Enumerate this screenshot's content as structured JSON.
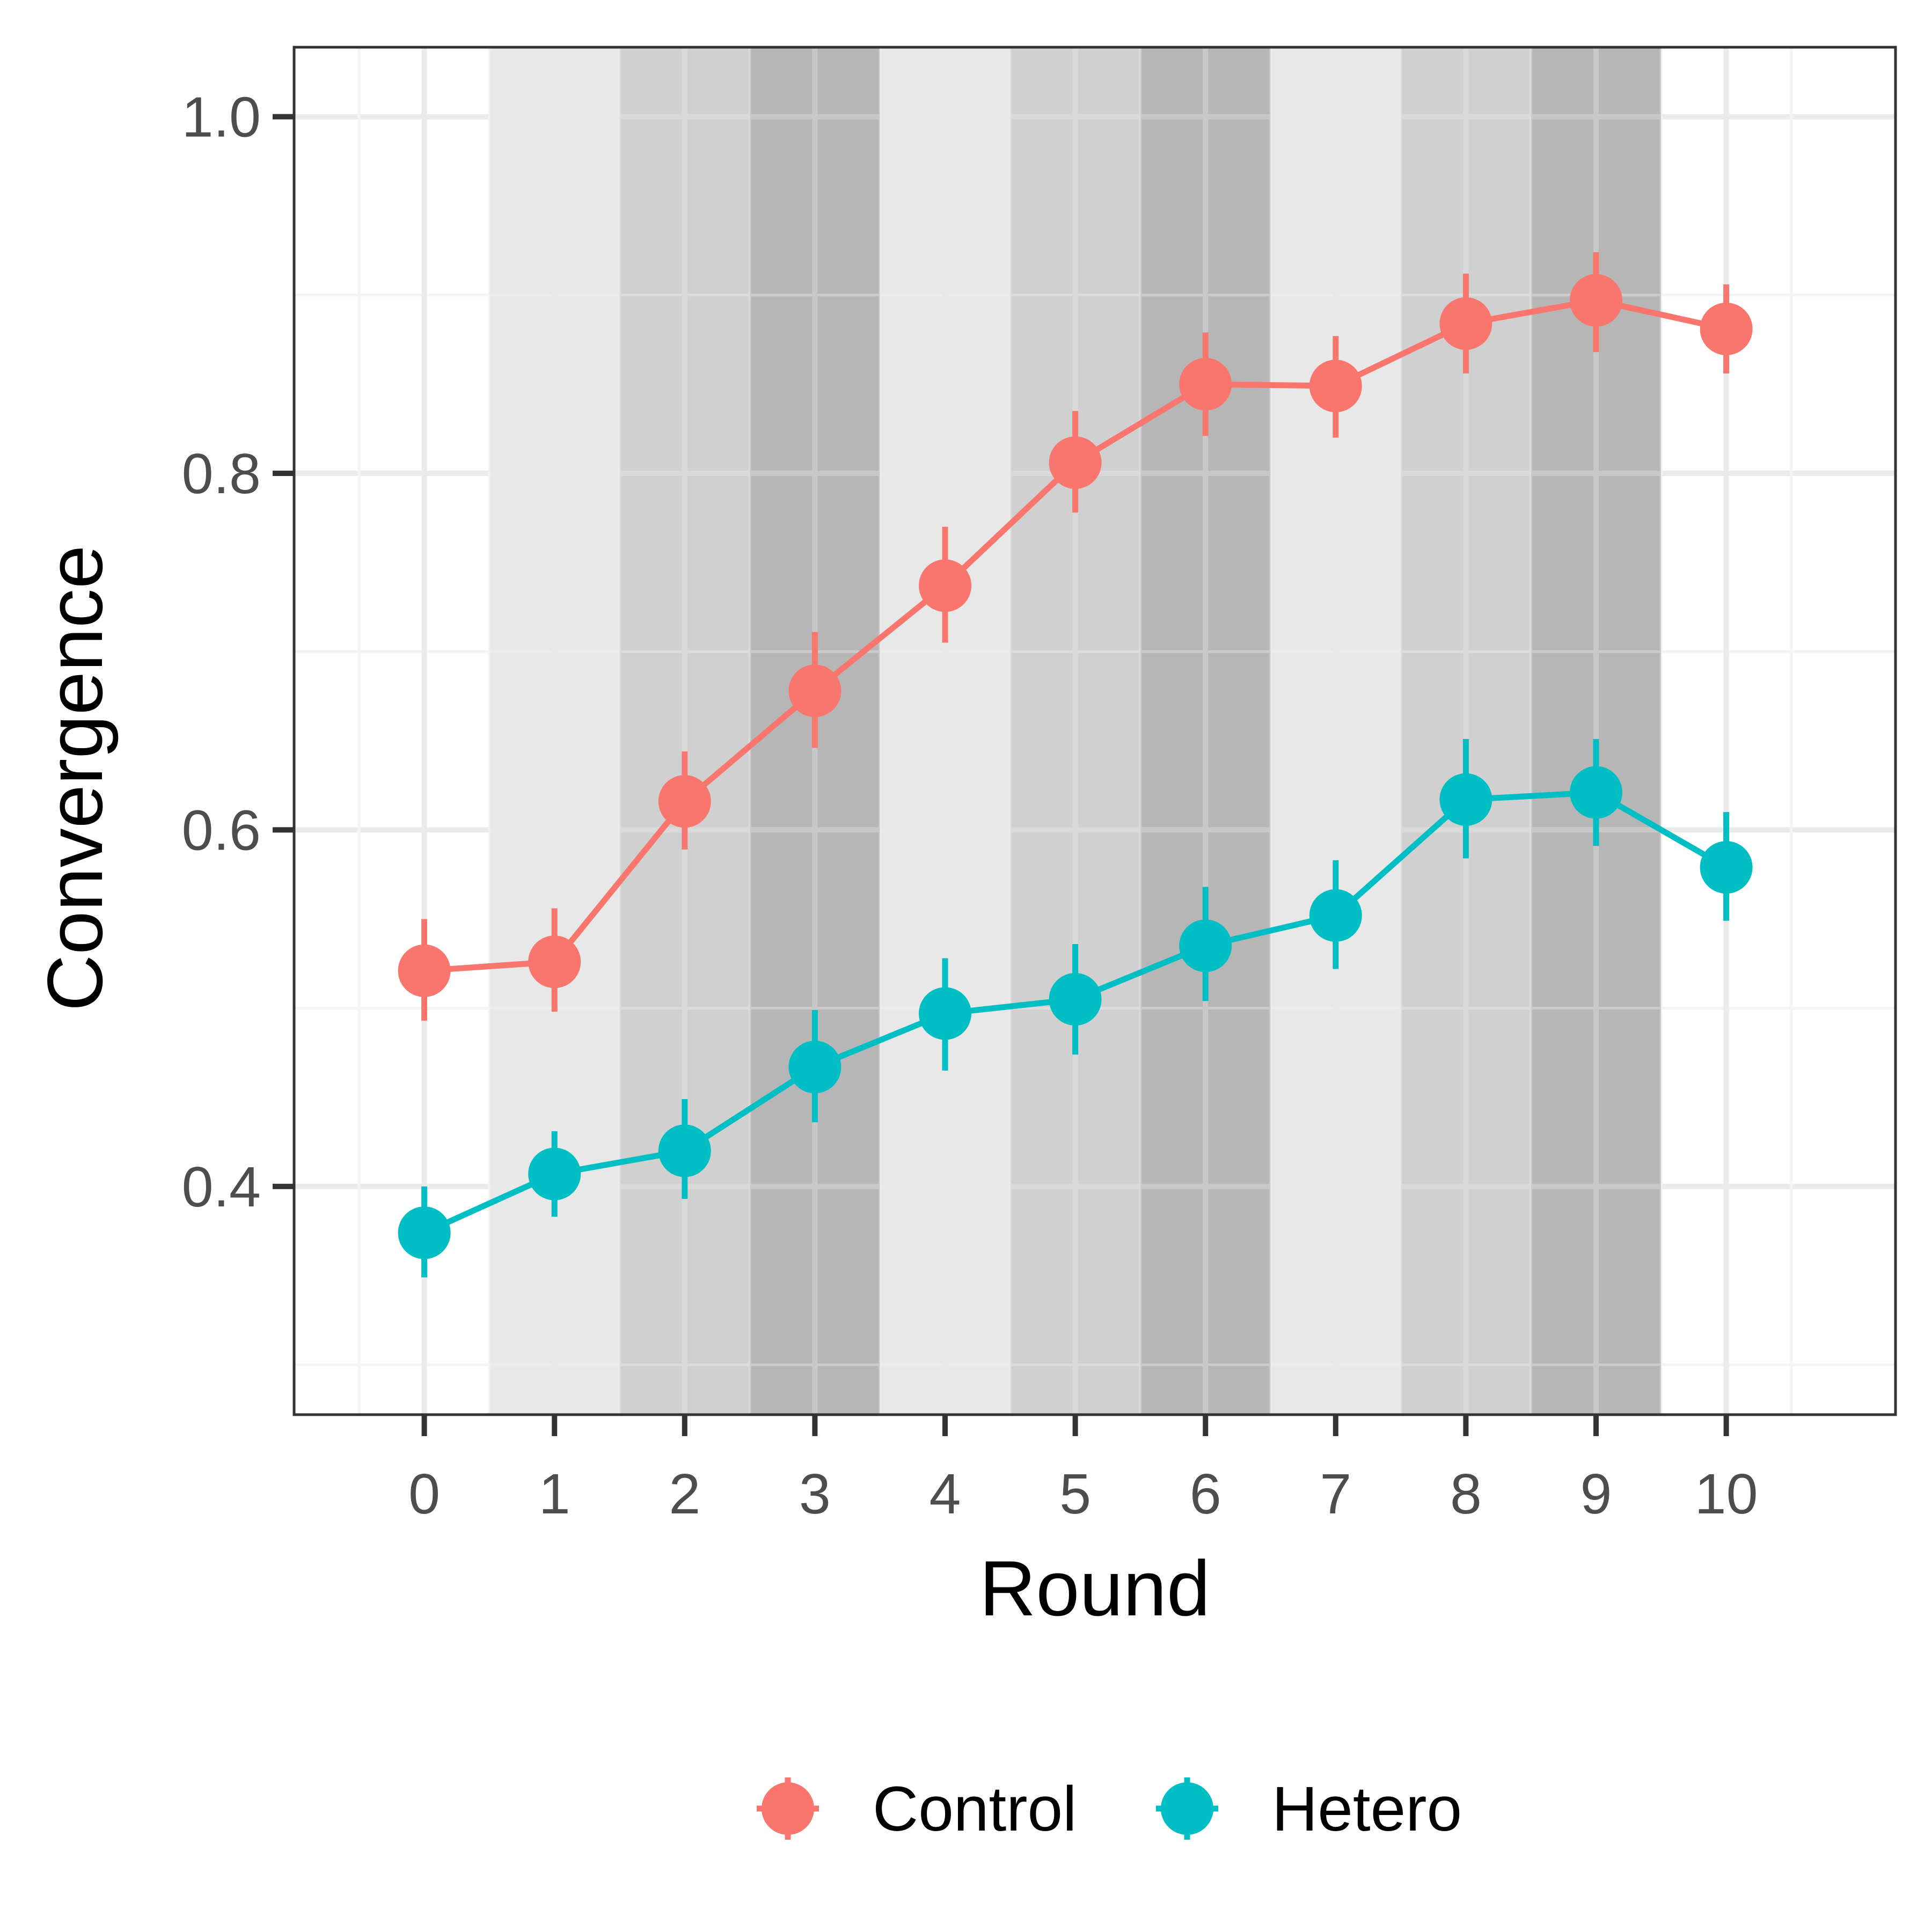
{
  "chart_data": {
    "type": "line",
    "xlabel": "Round",
    "ylabel": "Convergence",
    "x": [
      0,
      1,
      2,
      3,
      4,
      5,
      6,
      7,
      8,
      9,
      10
    ],
    "x_ticks": [
      "0",
      "1",
      "2",
      "3",
      "4",
      "5",
      "6",
      "7",
      "8",
      "9",
      "10"
    ],
    "xlim": [
      -1,
      11.3
    ],
    "y_ticks": [
      "0.4",
      "0.6",
      "0.8",
      "1.0"
    ],
    "ylim": [
      0.272,
      1.039
    ],
    "grid": true,
    "legend": {
      "position": "bottom",
      "entries": [
        "Control",
        "Hetero"
      ]
    },
    "background_bands": [
      {
        "from": 0.5,
        "to": 1.5,
        "shade": "#e8e8e8"
      },
      {
        "from": 1.5,
        "to": 2.5,
        "shade": "#d0d0d0"
      },
      {
        "from": 2.5,
        "to": 3.5,
        "shade": "#b6b6b6"
      },
      {
        "from": 3.5,
        "to": 4.5,
        "shade": "#e8e8e8"
      },
      {
        "from": 4.5,
        "to": 5.5,
        "shade": "#d0d0d0"
      },
      {
        "from": 5.5,
        "to": 6.5,
        "shade": "#b6b6b6"
      },
      {
        "from": 6.5,
        "to": 7.5,
        "shade": "#e8e8e8"
      },
      {
        "from": 7.5,
        "to": 8.5,
        "shade": "#d0d0d0"
      },
      {
        "from": 8.5,
        "to": 9.5,
        "shade": "#b6b6b6"
      }
    ],
    "series": [
      {
        "name": "Control",
        "color": "#f8766d",
        "values": [
          0.521,
          0.526,
          0.616,
          0.678,
          0.737,
          0.806,
          0.85,
          0.849,
          0.884,
          0.897,
          0.881
        ],
        "lower": [
          0.493,
          0.498,
          0.589,
          0.646,
          0.705,
          0.778,
          0.821,
          0.82,
          0.856,
          0.868,
          0.856
        ],
        "upper": [
          0.55,
          0.556,
          0.644,
          0.711,
          0.77,
          0.835,
          0.879,
          0.877,
          0.912,
          0.924,
          0.906
        ]
      },
      {
        "name": "Hetero",
        "color": "#00bfc4",
        "values": [
          0.374,
          0.407,
          0.42,
          0.467,
          0.497,
          0.505,
          0.535,
          0.552,
          0.617,
          0.621,
          0.579
        ],
        "lower": [
          0.349,
          0.383,
          0.393,
          0.436,
          0.465,
          0.474,
          0.504,
          0.522,
          0.584,
          0.591,
          0.549
        ],
        "upper": [
          0.4,
          0.431,
          0.449,
          0.499,
          0.528,
          0.536,
          0.568,
          0.583,
          0.651,
          0.651,
          0.61
        ]
      }
    ]
  }
}
